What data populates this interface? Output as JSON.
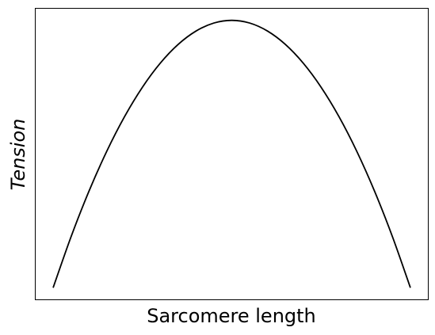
{
  "chart_data": {
    "type": "line",
    "title": "",
    "xlabel": "Sarcomere length",
    "ylabel": "Tension",
    "x_ticks_visible": false,
    "y_ticks_visible": false,
    "grid": false,
    "xlim": [
      -0.05,
      1.05
    ],
    "ylim": [
      -0.045,
      1.045
    ],
    "series": [
      {
        "color": "#000000",
        "x": [
          0,
          0.05,
          0.1,
          0.15,
          0.2,
          0.25,
          0.3,
          0.35,
          0.4,
          0.45,
          0.5,
          0.55,
          0.6,
          0.65,
          0.7,
          0.75,
          0.8,
          0.85,
          0.9,
          0.95,
          1
        ],
        "y": [
          0,
          0.19,
          0.36,
          0.51,
          0.64,
          0.75,
          0.84,
          0.91,
          0.96,
          0.99,
          1,
          0.99,
          0.96,
          0.91,
          0.84,
          0.75,
          0.64,
          0.51,
          0.36,
          0.19,
          0
        ]
      }
    ]
  }
}
